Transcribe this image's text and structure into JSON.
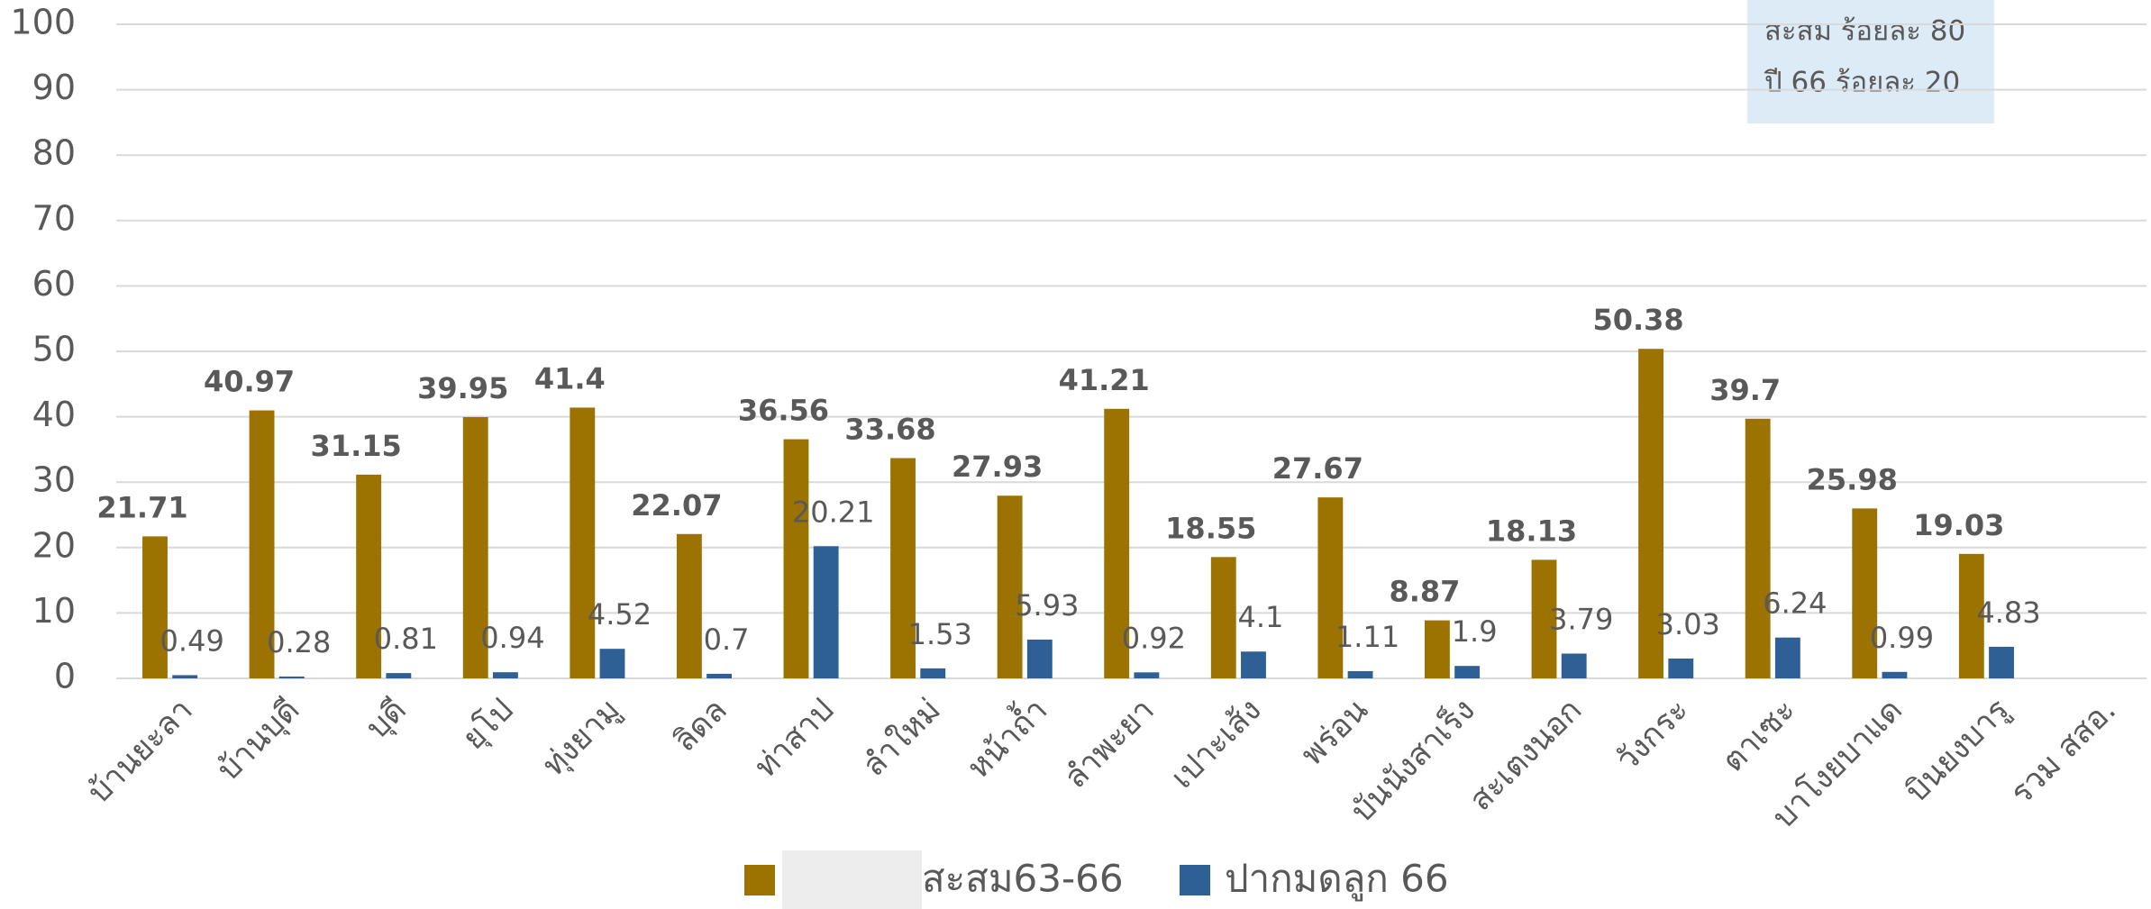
{
  "chart_data": {
    "type": "bar",
    "categories": [
      "บ้านยะลา",
      "บ้านบุดี",
      "บุดี",
      "ยุโป",
      "ทุ่งยามู",
      "ลิดล",
      "ท่าสาป",
      "ลำใหม่",
      "หน้าถ้ำ",
      "ลำพะยา",
      "เปาะเส้ง",
      "พร่อน",
      "บันนังสาเร็ง",
      "สะเตงนอก",
      "วังกระ",
      "ตาเซะ",
      "บาโงยบาแด",
      "บินยงบารู",
      "รวม สสอ."
    ],
    "series": [
      {
        "name": "สะสม63-66",
        "color": "#9C7300",
        "values": [
          21.71,
          40.97,
          31.15,
          39.95,
          41.4,
          22.07,
          36.56,
          33.68,
          27.93,
          41.21,
          18.55,
          27.67,
          8.87,
          18.13,
          50.38,
          39.7,
          25.98,
          19.03,
          null
        ]
      },
      {
        "name": "ปากมดลูก 66",
        "color": "#2E6095",
        "values": [
          0.49,
          0.28,
          0.81,
          0.94,
          4.52,
          0.7,
          20.21,
          1.53,
          5.93,
          0.92,
          4.1,
          1.11,
          1.9,
          3.79,
          3.03,
          6.24,
          0.99,
          4.83,
          null
        ]
      }
    ],
    "annotations": [
      "สะสม ร้อยละ 80",
      "ปี 66 ร้อยละ 20"
    ],
    "ylim": [
      0,
      100
    ],
    "yticks": [
      0,
      10,
      20,
      30,
      40,
      50,
      60,
      70,
      80,
      90,
      100
    ],
    "grid": true
  }
}
